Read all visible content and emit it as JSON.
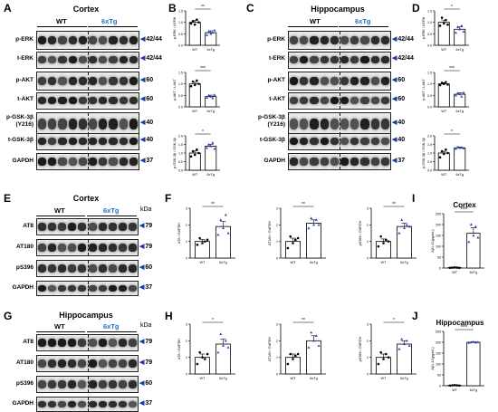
{
  "panels": {
    "A": {
      "letter": "A",
      "title": "Cortex",
      "groups": [
        "WT",
        "6xTg"
      ],
      "rows": [
        {
          "label": "p-ERK",
          "kda": "42/44"
        },
        {
          "label": "t-ERK",
          "kda": "42/44"
        },
        {
          "label": "p-AKT",
          "kda": "60"
        },
        {
          "label": "t-AKT",
          "kda": "60"
        },
        {
          "label": "p-GSK-3β\n(Y216)",
          "kda": "40"
        },
        {
          "label": "t-GSK-3β",
          "kda": "40"
        },
        {
          "label": "GAPDH",
          "kda": "37"
        }
      ]
    },
    "C": {
      "letter": "C",
      "title": "Hippocampus",
      "groups": [
        "WT",
        "6xTg"
      ],
      "rows": [
        {
          "label": "p-ERK",
          "kda": "42/44"
        },
        {
          "label": "t-ERK",
          "kda": "42/44"
        },
        {
          "label": "p-AKT",
          "kda": "60"
        },
        {
          "label": "t-AKT",
          "kda": "60"
        },
        {
          "label": "p-GSK-3β\n(Y216)",
          "kda": "40"
        },
        {
          "label": "t-GSK-3β",
          "kda": "40"
        },
        {
          "label": "GAPDH",
          "kda": "37"
        }
      ]
    },
    "E": {
      "letter": "E",
      "title": "Cortex",
      "groups": [
        "WT",
        "6xTg"
      ],
      "kda_header": "kDa",
      "rows": [
        {
          "label": "AT8",
          "kda": "79"
        },
        {
          "label": "AT180",
          "kda": "79"
        },
        {
          "label": "pS396",
          "kda": "60"
        },
        {
          "label": "GAPDH",
          "kda": "37"
        }
      ]
    },
    "G": {
      "letter": "G",
      "title": "Hippocampus",
      "groups": [
        "WT",
        "6xTg"
      ],
      "kda_header": "kDa",
      "rows": [
        {
          "label": "AT8",
          "kda": "79"
        },
        {
          "label": "AT180",
          "kda": "79"
        },
        {
          "label": "pS396",
          "kda": "60"
        },
        {
          "label": "GAPDH",
          "kda": "37"
        }
      ]
    },
    "B": {
      "letter": "B"
    },
    "D": {
      "letter": "D"
    },
    "F": {
      "letter": "F"
    },
    "H": {
      "letter": "H"
    },
    "I": {
      "letter": "I",
      "title": "Cortex"
    },
    "J": {
      "letter": "J",
      "title": "Hippocampus"
    }
  },
  "chart_data": [
    {
      "id": "B1",
      "type": "bar",
      "categories": [
        "WT",
        "6xTg"
      ],
      "values": [
        1.0,
        0.55
      ],
      "errors": [
        0.08,
        0.08
      ],
      "ylabel": "p-ERK / t-ERK",
      "ylim": [
        0,
        1.5
      ],
      "yticks": [
        "0.0",
        "0.5",
        "1.0",
        "1.5"
      ],
      "sig": "**",
      "points": [
        [
          0.95,
          1.05,
          0.9,
          1.12,
          1.0
        ],
        [
          0.45,
          0.6,
          0.5,
          0.55,
          0.65
        ]
      ]
    },
    {
      "id": "B2",
      "type": "bar",
      "categories": [
        "WT",
        "6xTg"
      ],
      "values": [
        1.0,
        0.45
      ],
      "errors": [
        0.07,
        0.06
      ],
      "ylabel": "p-AKT / t-AKT",
      "ylim": [
        0,
        1.5
      ],
      "yticks": [
        "0.0",
        "0.5",
        "1.0",
        "1.5"
      ],
      "sig": "***",
      "points": [
        [
          0.9,
          1.1,
          0.95,
          1.15,
          1.0
        ],
        [
          0.4,
          0.5,
          0.45,
          0.38,
          0.52
        ]
      ]
    },
    {
      "id": "B3",
      "type": "bar",
      "categories": [
        "WT",
        "6xTg"
      ],
      "values": [
        1.0,
        1.4
      ],
      "errors": [
        0.12,
        0.1
      ],
      "ylabel": "p-GSK-3β / GSK-3β",
      "ylim": [
        0,
        2.0
      ],
      "yticks": [
        "0.0",
        "0.5",
        "1.0",
        "1.5",
        "2.0"
      ],
      "sig": "*",
      "points": [
        [
          0.8,
          1.1,
          0.9,
          1.2,
          1.0
        ],
        [
          1.3,
          1.5,
          1.4,
          1.6,
          1.25
        ]
      ]
    },
    {
      "id": "D1",
      "type": "bar",
      "categories": [
        "WT",
        "6xTg"
      ],
      "values": [
        1.0,
        0.7
      ],
      "errors": [
        0.1,
        0.1
      ],
      "ylabel": "p-ERK / t-ERK",
      "ylim": [
        0,
        1.5
      ],
      "yticks": [
        "0.0",
        "0.5",
        "1.0",
        "1.5"
      ],
      "sig": "*",
      "points": [
        [
          0.85,
          1.2,
          0.95,
          1.1,
          0.9
        ],
        [
          0.55,
          0.8,
          0.7,
          0.85,
          0.6
        ]
      ]
    },
    {
      "id": "D2",
      "type": "bar",
      "categories": [
        "WT",
        "6xTg"
      ],
      "values": [
        1.0,
        0.55
      ],
      "errors": [
        0.05,
        0.06
      ],
      "ylabel": "p-AKT / t-AKT",
      "ylim": [
        0,
        1.5
      ],
      "yticks": [
        "0.0",
        "0.5",
        "1.0",
        "1.5"
      ],
      "sig": "***",
      "points": [
        [
          0.95,
          1.05,
          1.0,
          1.08,
          0.97
        ],
        [
          0.5,
          0.6,
          0.55,
          0.45,
          0.62
        ]
      ]
    },
    {
      "id": "D3",
      "type": "bar",
      "categories": [
        "WT",
        "6xTg"
      ],
      "values": [
        1.0,
        1.3
      ],
      "errors": [
        0.1,
        0.05
      ],
      "ylabel": "p-GSK-3β / GSK-3β",
      "ylim": [
        0,
        2.0
      ],
      "yticks": [
        "0.0",
        "0.5",
        "1.0",
        "1.5",
        "2.0"
      ],
      "sig": "*",
      "points": [
        [
          0.75,
          1.1,
          0.95,
          1.2,
          1.0
        ],
        [
          1.25,
          1.35,
          1.3,
          1.32,
          1.28
        ]
      ]
    },
    {
      "id": "F1",
      "type": "bar",
      "categories": [
        "WT",
        "6xTg"
      ],
      "values": [
        1.0,
        1.9
      ],
      "errors": [
        0.12,
        0.3
      ],
      "ylabel": "AT8 / GAPDH",
      "ylim": [
        0,
        3
      ],
      "yticks": [
        "0",
        "1",
        "2",
        "3"
      ],
      "sig": "**",
      "points": [
        [
          0.8,
          1.2,
          0.9,
          1.0,
          1.1
        ],
        [
          1.4,
          2.3,
          1.8,
          2.6,
          1.5
        ]
      ]
    },
    {
      "id": "F2",
      "type": "bar",
      "categories": [
        "WT",
        "6xTg"
      ],
      "values": [
        1.0,
        2.1
      ],
      "errors": [
        0.2,
        0.2
      ],
      "ylabel": "AT180 / GAPDH",
      "ylim": [
        0,
        3
      ],
      "yticks": [
        "0",
        "1",
        "2",
        "3"
      ],
      "sig": "**",
      "points": [
        [
          0.6,
          1.3,
          0.9,
          1.1,
          1.2
        ],
        [
          1.8,
          2.4,
          2.0,
          2.3,
          2.0
        ]
      ]
    },
    {
      "id": "F3",
      "type": "bar",
      "categories": [
        "WT",
        "6xTg"
      ],
      "values": [
        1.0,
        1.9
      ],
      "errors": [
        0.15,
        0.2
      ],
      "ylabel": "pS396 / GAPDH",
      "ylim": [
        0,
        3
      ],
      "yticks": [
        "0",
        "1",
        "2",
        "3"
      ],
      "sig": "**",
      "points": [
        [
          0.7,
          1.3,
          0.9,
          1.1,
          1.0
        ],
        [
          1.5,
          2.3,
          1.8,
          2.0,
          1.9
        ]
      ]
    },
    {
      "id": "H1",
      "type": "bar",
      "categories": [
        "WT",
        "6xTg"
      ],
      "values": [
        1.0,
        1.8
      ],
      "errors": [
        0.2,
        0.3
      ],
      "ylabel": "AT8 / GAPDH",
      "ylim": [
        0,
        3
      ],
      "yticks": [
        "0",
        "1",
        "2",
        "3"
      ],
      "sig": "*",
      "points": [
        [
          0.6,
          1.3,
          1.0,
          0.9,
          1.2
        ],
        [
          1.3,
          2.4,
          1.7,
          2.0,
          1.6
        ]
      ]
    },
    {
      "id": "H2",
      "type": "bar",
      "categories": [
        "WT",
        "6xTg"
      ],
      "values": [
        1.0,
        2.0
      ],
      "errors": [
        0.2,
        0.3
      ],
      "ylabel": "AT180 / GAPDH",
      "ylim": [
        0,
        3
      ],
      "yticks": [
        "0",
        "1",
        "2",
        "3"
      ],
      "sig": "**",
      "points": [
        [
          0.6,
          1.2,
          0.9,
          1.1,
          1.2
        ],
        [
          1.6,
          2.5,
          2.0,
          2.3,
          1.7
        ]
      ]
    },
    {
      "id": "H3",
      "type": "bar",
      "categories": [
        "WT",
        "6xTg"
      ],
      "values": [
        1.0,
        1.8
      ],
      "errors": [
        0.2,
        0.2
      ],
      "ylabel": "pS396 / GAPDH",
      "ylim": [
        0,
        3
      ],
      "yticks": [
        "0",
        "1",
        "2",
        "3"
      ],
      "sig": "*",
      "points": [
        [
          0.6,
          1.3,
          0.9,
          1.2,
          1.0
        ],
        [
          1.5,
          2.1,
          1.8,
          2.0,
          1.7
        ]
      ]
    },
    {
      "id": "I1",
      "type": "bar",
      "categories": [
        "WT",
        "6xTg"
      ],
      "values": [
        2,
        160
      ],
      "errors": [
        1,
        25
      ],
      "ylabel": "Aβ1-42(pg/mL)",
      "ylim": [
        0,
        250
      ],
      "yticks": [
        "0",
        "50",
        "100",
        "150",
        "200",
        "250"
      ],
      "sig": "****",
      "points": [
        [
          1,
          2,
          3,
          2,
          1
        ],
        [
          120,
          200,
          150,
          190,
          140
        ]
      ]
    },
    {
      "id": "J1",
      "type": "bar",
      "categories": [
        "WT",
        "6xTg"
      ],
      "values": [
        2,
        200
      ],
      "errors": [
        1,
        2
      ],
      "ylabel": "Aβ1-42(pg/mL)",
      "ylim": [
        0,
        250
      ],
      "yticks": [
        "0",
        "50",
        "100",
        "150",
        "200",
        "250"
      ],
      "sig": "****",
      "points": [
        [
          1,
          2,
          3,
          2,
          1
        ],
        [
          198,
          200,
          202,
          199,
          201
        ]
      ]
    }
  ]
}
